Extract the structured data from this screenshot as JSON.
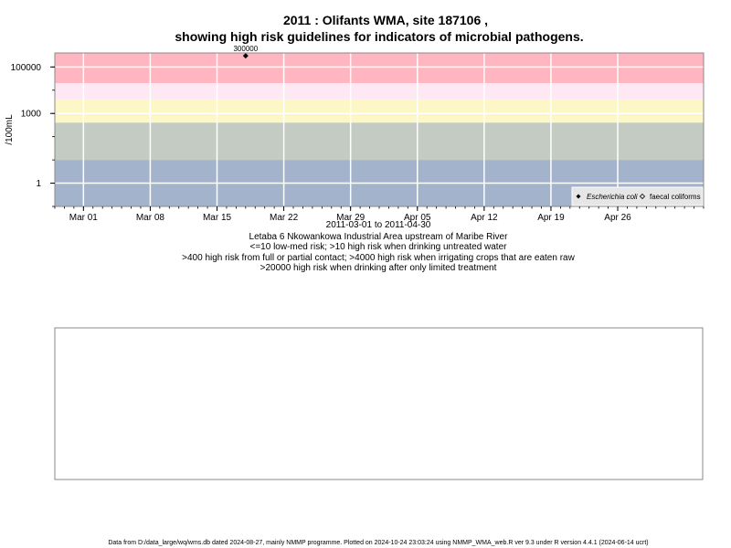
{
  "title_line1": "2011 : Olifants WMA, site 187106 ,",
  "title_line2": "showing high risk guidelines for indicators of microbial pathogens.",
  "ylabel": "/100mL",
  "xlabel": "2011-03-01 to 2011-04-30",
  "caption_lines": [
    "Letaba 6 Nkowankowa Industrial Area upstream of Maribe River",
    "<=10 low-med risk; >10 high risk when drinking untreated water",
    ">400 high risk from full or partial contact; >4000 high risk when irrigating crops that are eaten raw",
    ">20000 high risk when drinking after only limited treatment"
  ],
  "footer": "Data from D:/data_large/wq/wms.db dated 2024-08-27, mainly NMMP programme. Plotted on 2024-10-24 23:03:24 using NMMP_WMA_web.R ver 9.3 under R version 4.4.1 (2024-06-14 ucrt)",
  "colors": {
    "band_gt20000": "#ffb6c1",
    "band_4000_20000": "#fde8f4",
    "band_400_4000": "#fdf7c6",
    "band_10_400": "#c4cbc3",
    "band_lt10": "#a3b3cb",
    "grid": "#ffffff",
    "axis": "#000000",
    "panel_border": "#888888"
  },
  "chart_data": {
    "type": "scatter",
    "x_scale": "date",
    "y_scale": "log10",
    "xlim": [
      "2011-02-26",
      "2011-05-05"
    ],
    "ylim": [
      0.1,
      400000
    ],
    "x_ticks": [
      {
        "date": "2011-03-01",
        "label": "Mar 01"
      },
      {
        "date": "2011-03-08",
        "label": "Mar 08"
      },
      {
        "date": "2011-03-15",
        "label": "Mar 15"
      },
      {
        "date": "2011-03-22",
        "label": "Mar 22"
      },
      {
        "date": "2011-03-29",
        "label": "Mar 29"
      },
      {
        "date": "2011-04-05",
        "label": "Apr 05"
      },
      {
        "date": "2011-04-12",
        "label": "Apr 12"
      },
      {
        "date": "2011-04-19",
        "label": "Apr 19"
      },
      {
        "date": "2011-04-26",
        "label": "Apr 26"
      }
    ],
    "y_ticks": [
      {
        "value": 1,
        "label": "1"
      },
      {
        "value": 1000,
        "label": "1000"
      },
      {
        "value": 100000,
        "label": "100000"
      }
    ],
    "risk_bands": [
      {
        "from": 20000,
        "to": 400000,
        "color_key": "band_gt20000"
      },
      {
        "from": 4000,
        "to": 20000,
        "color_key": "band_4000_20000"
      },
      {
        "from": 400,
        "to": 4000,
        "color_key": "band_400_4000"
      },
      {
        "from": 10,
        "to": 400,
        "color_key": "band_10_400"
      },
      {
        "from": 0.1,
        "to": 10,
        "color_key": "band_lt10"
      }
    ],
    "series": [
      {
        "name": "Escherichia coli",
        "marker": "filled-diamond",
        "points": [
          {
            "x": "2011-03-18",
            "y": 300000,
            "label": "300000"
          }
        ]
      },
      {
        "name": "faecal coliforms",
        "marker": "open-diamond",
        "points": []
      }
    ],
    "legend_position": "bottom-right",
    "grid": true
  }
}
